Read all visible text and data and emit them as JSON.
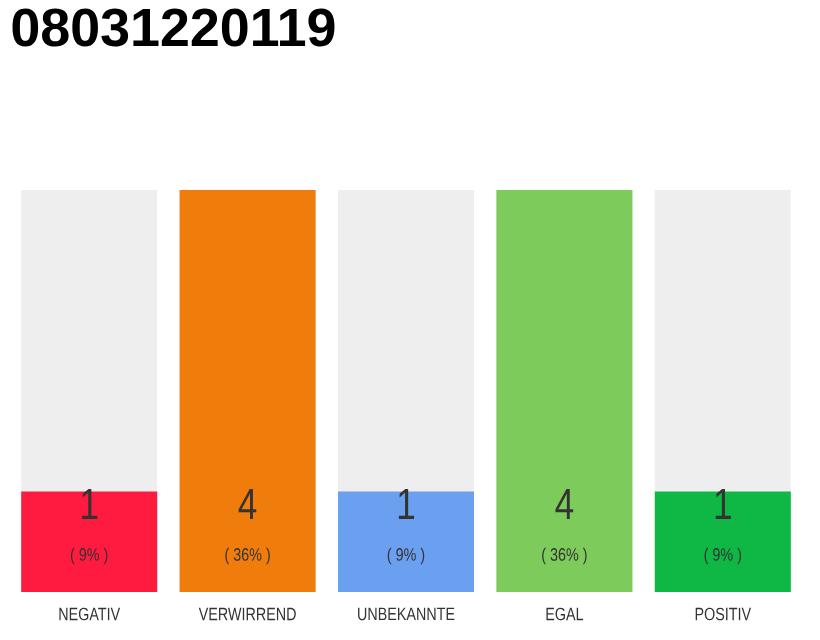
{
  "chart_data": {
    "type": "bar",
    "title": "08031220119",
    "categories": [
      "NEGATIV",
      "VERWIRREND",
      "UNBEKANNTE",
      "EGAL",
      "POSITIV"
    ],
    "values": [
      1,
      4,
      1,
      4,
      1
    ],
    "colors": [
      "#ff1a40",
      "#f07c0c",
      "#6b9ff0",
      "#7dcb5a",
      "#0fb845"
    ],
    "ylim": [
      0,
      4
    ],
    "tick_labels": "x",
    "data_labels": true,
    "annotations": [
      "( 9% )",
      "( 36% )",
      "( 9% )",
      "( 36% )",
      "( 9% )"
    ]
  }
}
